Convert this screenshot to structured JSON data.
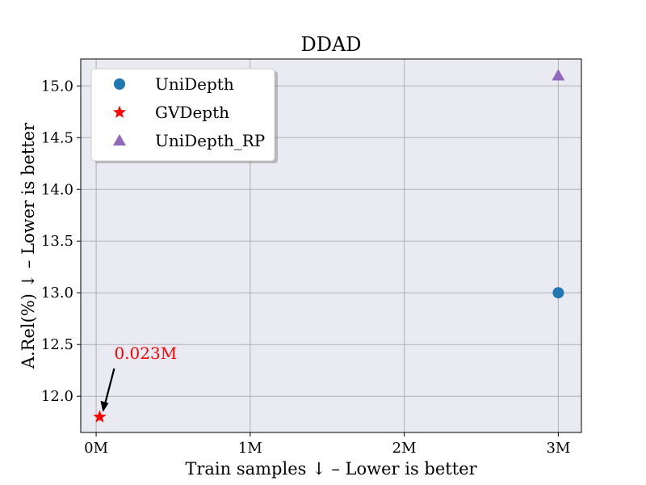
{
  "chart_data": {
    "type": "scatter",
    "title": "DDAD",
    "xlabel": "Train samples ↓ – Lower is better",
    "ylabel": "A.Rel(%) ↓ – Lower is better",
    "xlim": [
      -0.1,
      3.15
    ],
    "ylim": [
      11.65,
      15.26
    ],
    "x_ticks": [
      {
        "value": 0,
        "label": "0M"
      },
      {
        "value": 1,
        "label": "1M"
      },
      {
        "value": 2,
        "label": "2M"
      },
      {
        "value": 3,
        "label": "3M"
      }
    ],
    "y_ticks": [
      {
        "value": 12.0,
        "label": "12.0"
      },
      {
        "value": 12.5,
        "label": "12.5"
      },
      {
        "value": 13.0,
        "label": "13.0"
      },
      {
        "value": 13.5,
        "label": "13.5"
      },
      {
        "value": 14.0,
        "label": "14.0"
      },
      {
        "value": 14.5,
        "label": "14.5"
      },
      {
        "value": 15.0,
        "label": "15.0"
      }
    ],
    "grid": true,
    "legend_position": "top-left",
    "series": [
      {
        "name": "UniDepth",
        "marker": "circle",
        "color": "#1f77b4",
        "points": [
          {
            "x": 3.0,
            "y": 13.0
          }
        ]
      },
      {
        "name": "GVDepth",
        "marker": "star",
        "color": "#ff0000",
        "points": [
          {
            "x": 0.023,
            "y": 11.8
          }
        ]
      },
      {
        "name": "UniDepth_RP",
        "marker": "triangle",
        "color": "#9467bd",
        "points": [
          {
            "x": 3.0,
            "y": 15.1
          }
        ]
      }
    ],
    "annotations": [
      {
        "text": "0.023M",
        "x": 0.023,
        "y": 11.8,
        "color": "#ff0000"
      }
    ]
  }
}
